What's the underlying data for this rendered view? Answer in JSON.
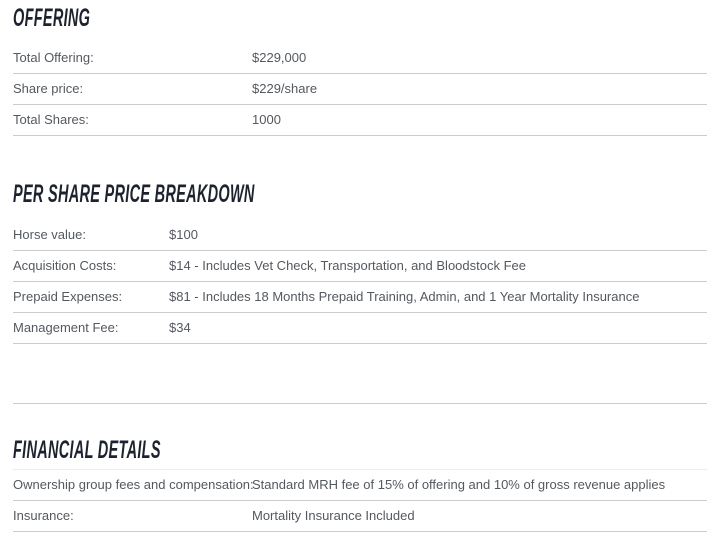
{
  "colors": {
    "heading": "#1d222e",
    "body_text": "#54595f",
    "divider": "#cbcbcb",
    "background": "#ffffff"
  },
  "sections": [
    {
      "heading": "OFFERING",
      "rows": [
        {
          "label": "Total Offering:",
          "value": "$229,000"
        },
        {
          "label": "Share price:",
          "value": "$229/share"
        },
        {
          "label": "Total Shares:",
          "value": "1000"
        }
      ]
    },
    {
      "heading": "PER SHARE PRICE BREAKDOWN",
      "rows": [
        {
          "label": "Horse value:",
          "value": "$100"
        },
        {
          "label": "Acquisition Costs:",
          "value": "$14 - Includes Vet Check, Transportation, and Bloodstock Fee"
        },
        {
          "label": "Prepaid Expenses:",
          "value": "$81 - Includes 18 Months Prepaid Training, Admin, and 1 Year Mortality Insurance"
        },
        {
          "label": "Management Fee:",
          "value": "$34"
        },
        {
          "label": "",
          "value": ""
        }
      ]
    },
    {
      "heading": "FINANCIAL DETAILS",
      "rows": [
        {
          "label": "Ownership group fees and compensation:",
          "value": "Standard MRH fee of 15% of offering and 10% of gross revenue applies"
        },
        {
          "label": "Insurance:",
          "value": "Mortality Insurance Included"
        }
      ]
    }
  ]
}
